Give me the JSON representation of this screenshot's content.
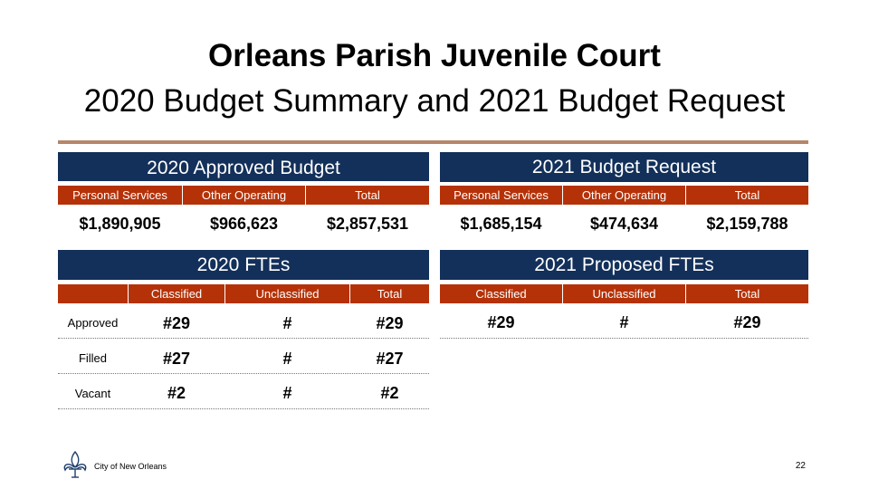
{
  "title": {
    "line1": "Orleans  Parish Juvenile Court",
    "line2": "2020 Budget Summary and 2021 Budget Request"
  },
  "budget_2020": {
    "heading": "2020 Approved Budget",
    "columns": [
      "Personal Services",
      "Other Operating",
      "Total"
    ],
    "values": [
      "$1,890,905",
      "$966,623",
      "$2,857,531"
    ]
  },
  "budget_2021": {
    "heading": "2021 Budget Request",
    "columns": [
      "Personal Services",
      "Other Operating",
      "Total"
    ],
    "values": [
      "$1,685,154",
      "$474,634",
      "$2,159,788"
    ]
  },
  "ftes_2020": {
    "heading": "2020 FTEs",
    "columns": [
      "Classified",
      "Unclassified",
      "Total"
    ],
    "rows": [
      {
        "label": "Approved",
        "values": [
          "#29",
          "#",
          "#29"
        ]
      },
      {
        "label": "Filled",
        "values": [
          "#27",
          "#",
          "#27"
        ]
      },
      {
        "label": "Vacant",
        "values": [
          "#2",
          "#",
          "#2"
        ]
      }
    ]
  },
  "ftes_2021": {
    "heading": "2021 Proposed FTEs",
    "columns": [
      "Classified",
      "Unclassified",
      "Total"
    ],
    "values": [
      "#29",
      "#",
      "#29"
    ]
  },
  "footer": {
    "org": "City of New Orleans",
    "page": "22",
    "logo_icon": "fleur-de-lis-icon"
  },
  "colors": {
    "navy": "#13305a",
    "rust": "#b53208",
    "rule": "#b5866a"
  }
}
